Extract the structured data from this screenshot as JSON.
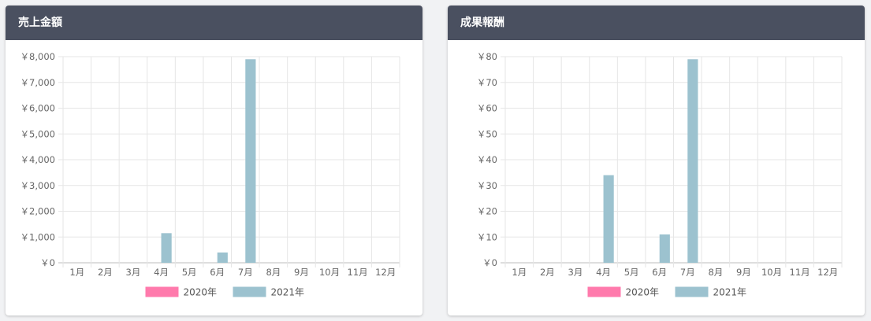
{
  "colors": {
    "header_bg": "#4a5060",
    "series_2020": "#ff7aac",
    "series_2021": "#9cc2cf",
    "grid": "#e6e6e6"
  },
  "chart_data": [
    {
      "type": "bar",
      "title": "売上金額",
      "categories": [
        "1月",
        "2月",
        "3月",
        "4月",
        "5月",
        "6月",
        "7月",
        "8月",
        "9月",
        "10月",
        "11月",
        "12月"
      ],
      "series": [
        {
          "name": "2020年",
          "color": "#ff7aac",
          "values": [
            0,
            0,
            0,
            0,
            0,
            0,
            0,
            0,
            0,
            0,
            0,
            0
          ]
        },
        {
          "name": "2021年",
          "color": "#9cc2cf",
          "values": [
            0,
            0,
            0,
            1150,
            0,
            400,
            7900,
            0,
            0,
            0,
            0,
            0
          ]
        }
      ],
      "ylim": [
        0,
        8000
      ],
      "yticks": [
        0,
        1000,
        2000,
        3000,
        4000,
        5000,
        6000,
        7000,
        8000
      ],
      "ytick_labels": [
        "￥0",
        "￥1,000",
        "￥2,000",
        "￥3,000",
        "￥4,000",
        "￥5,000",
        "￥6,000",
        "￥7,000",
        "￥8,000"
      ],
      "grid": true,
      "legend": "bottom-center",
      "xlabel": "",
      "ylabel": ""
    },
    {
      "type": "bar",
      "title": "成果報酬",
      "categories": [
        "1月",
        "2月",
        "3月",
        "4月",
        "5月",
        "6月",
        "7月",
        "8月",
        "9月",
        "10月",
        "11月",
        "12月"
      ],
      "series": [
        {
          "name": "2020年",
          "color": "#ff7aac",
          "values": [
            0,
            0,
            0,
            0,
            0,
            0,
            0,
            0,
            0,
            0,
            0,
            0
          ]
        },
        {
          "name": "2021年",
          "color": "#9cc2cf",
          "values": [
            0,
            0,
            0,
            34,
            0,
            11,
            79,
            0,
            0,
            0,
            0,
            0
          ]
        }
      ],
      "ylim": [
        0,
        80
      ],
      "yticks": [
        0,
        10,
        20,
        30,
        40,
        50,
        60,
        70,
        80
      ],
      "ytick_labels": [
        "￥0",
        "￥10",
        "￥20",
        "￥30",
        "￥40",
        "￥50",
        "￥60",
        "￥70",
        "￥80"
      ],
      "grid": true,
      "legend": "bottom-center",
      "xlabel": "",
      "ylabel": ""
    }
  ]
}
